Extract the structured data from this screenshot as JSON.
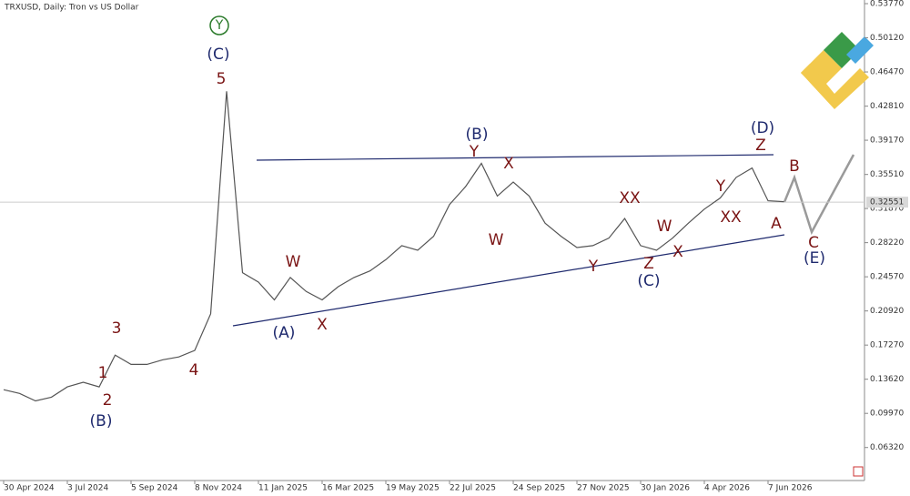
{
  "chart_data": {
    "type": "line",
    "title": "TRXUSD, Daily:  Tron vs US Dollar",
    "categories": [
      "30 Apr 2024",
      null,
      null,
      null,
      "3 Jul 2024",
      null,
      null,
      null,
      "5 Sep 2024",
      null,
      null,
      null,
      "8 Nov 2024",
      null,
      null,
      null,
      "11 Jan 2025",
      null,
      null,
      null,
      "16 Mar 2025",
      null,
      null,
      null,
      "19 May 2025",
      null,
      null,
      null,
      "22 Jul 2025",
      null,
      null,
      null,
      "24 Sep 2025",
      null,
      null,
      null,
      "27 Nov 2025",
      null,
      null,
      null,
      "30 Jan 2026",
      null,
      null,
      null,
      "4 Apr 2026",
      null,
      null,
      null,
      "7 Jun 2026",
      null
    ],
    "series": [
      {
        "name": "TRXUSD",
        "color": "#555555",
        "values": [
          0.125,
          0.121,
          0.113,
          0.117,
          0.128,
          0.133,
          0.128,
          0.162,
          0.152,
          0.152,
          0.157,
          0.16,
          0.167,
          0.206,
          0.444,
          0.25,
          0.24,
          0.221,
          0.245,
          0.23,
          0.221,
          0.235,
          0.245,
          0.252,
          0.264,
          0.279,
          0.274,
          0.289,
          0.323,
          0.342,
          0.367,
          0.332,
          0.347,
          0.332,
          0.303,
          0.289,
          0.277,
          0.279,
          0.287,
          0.308,
          0.279,
          0.274,
          0.287,
          0.303,
          0.318,
          0.33,
          0.352,
          0.362,
          0.327,
          0.326
        ]
      }
    ],
    "ylim": [
      0.0279,
      0.5416
    ],
    "yticks": [
      {
        "value": 0.5377,
        "label": "0.53770"
      },
      {
        "value": 0.5012,
        "label": "0.50120"
      },
      {
        "value": 0.4647,
        "label": "0.46470"
      },
      {
        "value": 0.4281,
        "label": "0.42810"
      },
      {
        "value": 0.3917,
        "label": "0.39170"
      },
      {
        "value": 0.3551,
        "label": "0.35510"
      },
      {
        "value": 0.3187,
        "label": "0.31870"
      },
      {
        "value": 0.2822,
        "label": "0.28220"
      },
      {
        "value": 0.2457,
        "label": "0.24570"
      },
      {
        "value": 0.2092,
        "label": "0.20920"
      },
      {
        "value": 0.1727,
        "label": "0.17270"
      },
      {
        "value": 0.1362,
        "label": "0.13620"
      },
      {
        "value": 0.0997,
        "label": "0.09970"
      },
      {
        "value": 0.0632,
        "label": "0.06320"
      }
    ],
    "current_price": 0.32551,
    "annotations": [
      {
        "text": "Y",
        "color": "#2a7a2a"
      },
      {
        "text": "(C)",
        "color": "#1f2a6e"
      },
      {
        "text": "5",
        "color": "#7a1414"
      },
      {
        "text": "3",
        "color": "#7a1414"
      },
      {
        "text": "1",
        "color": "#7a1414"
      },
      {
        "text": "2",
        "color": "#7a1414"
      },
      {
        "text": "(B)",
        "color": "#1f2a6e"
      },
      {
        "text": "4",
        "color": "#7a1414"
      },
      {
        "text": "W",
        "color": "#7a1414"
      },
      {
        "text": "(A)",
        "color": "#1f2a6e"
      },
      {
        "text": "X",
        "color": "#7a1414"
      },
      {
        "text": "Y",
        "color": "#7a1414"
      },
      {
        "text": "(B)",
        "color": "#1f2a6e"
      },
      {
        "text": "X",
        "color": "#7a1414"
      },
      {
        "text": "W",
        "color": "#7a1414"
      },
      {
        "text": "XX",
        "color": "#7a1414"
      },
      {
        "text": "Y",
        "color": "#7a1414"
      },
      {
        "text": "Z",
        "color": "#7a1414"
      },
      {
        "text": "(C)",
        "color": "#1f2a6e"
      },
      {
        "text": "W",
        "color": "#7a1414"
      },
      {
        "text": "X",
        "color": "#7a1414"
      },
      {
        "text": "Y",
        "color": "#7a1414"
      },
      {
        "text": "XX",
        "color": "#7a1414"
      },
      {
        "text": "Z",
        "color": "#7a1414"
      },
      {
        "text": "(D)",
        "color": "#1f2a6e"
      },
      {
        "text": "A",
        "color": "#7a1414"
      },
      {
        "text": "B",
        "color": "#7a1414"
      },
      {
        "text": "C",
        "color": "#7a1414"
      },
      {
        "text": "(E)",
        "color": "#1f2a6e"
      }
    ]
  }
}
